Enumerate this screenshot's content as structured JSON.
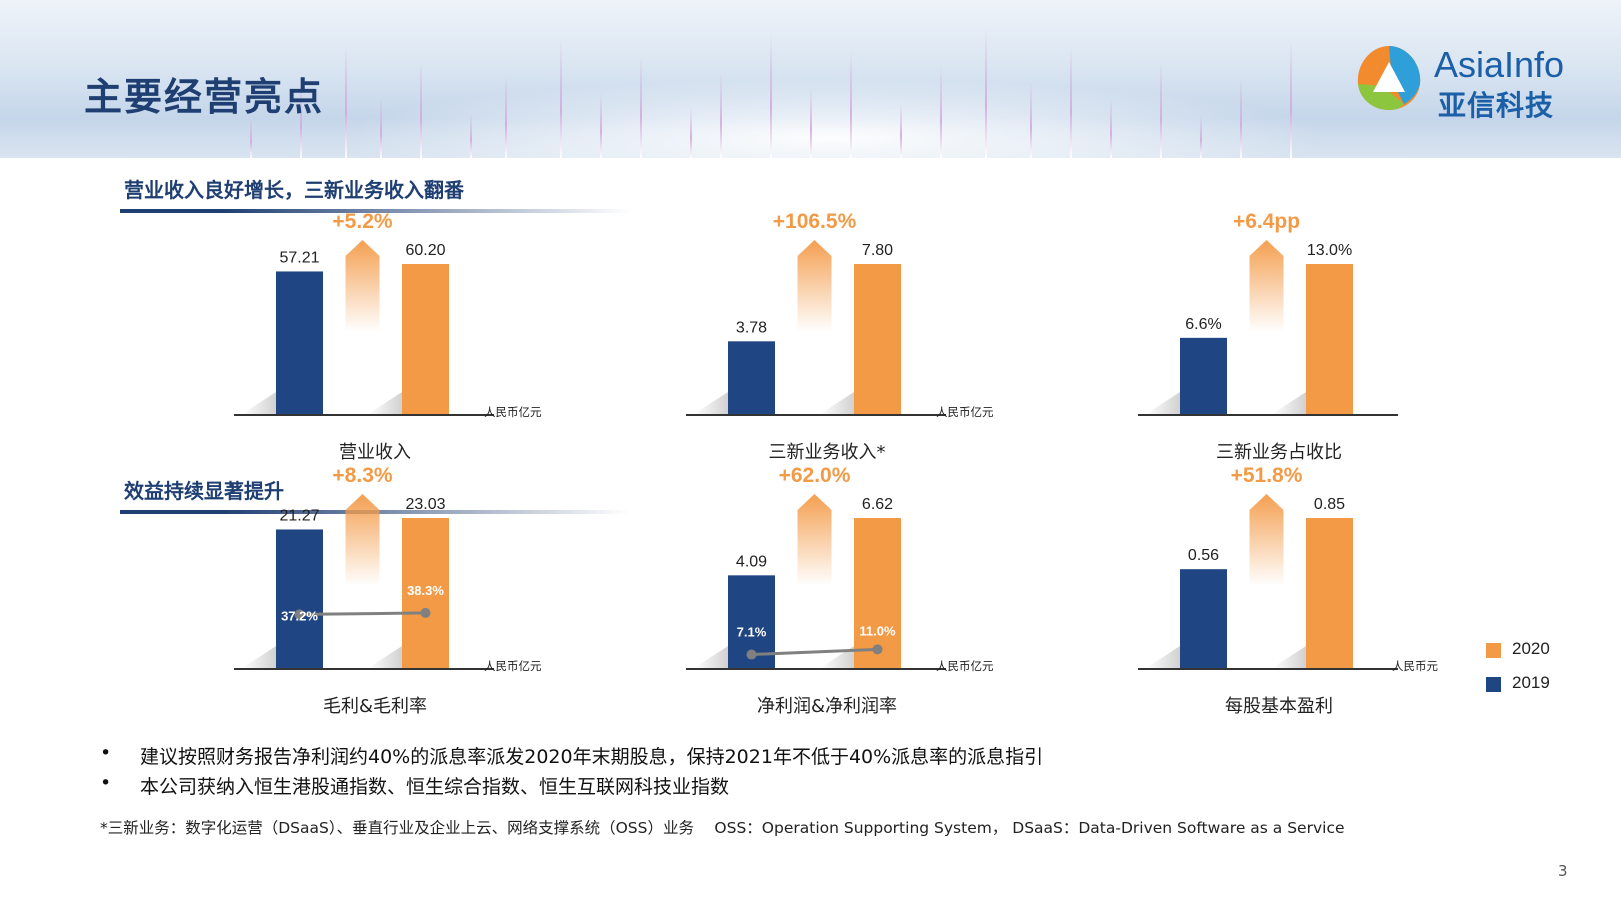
{
  "title": "主要经营亮点",
  "logo": {
    "en": "AsiaInfo",
    "cn": "亚信科技"
  },
  "section1": {
    "title": "营业收入良好增长，三新业务收入翻番"
  },
  "section2": {
    "title": "效益持续显著提升"
  },
  "colors": {
    "y2019": "#1f4683",
    "y2020": "#f39a47",
    "growth": "#f39a47",
    "line": "#808080"
  },
  "legend": [
    {
      "label": "2020",
      "color": "#f39a47"
    },
    {
      "label": "2019",
      "color": "#1f4683"
    }
  ],
  "chart_data": [
    {
      "type": "bar",
      "label": "营业收入",
      "unit": "人民币亿元",
      "categories": [
        "2019",
        "2020"
      ],
      "values": [
        57.21,
        60.2
      ],
      "value_labels": [
        "57.21",
        "60.20"
      ],
      "growth": "+5.2%"
    },
    {
      "type": "bar",
      "label": "三新业务收入*",
      "unit": "人民币亿元",
      "categories": [
        "2019",
        "2020"
      ],
      "values": [
        3.78,
        7.8
      ],
      "value_labels": [
        "3.78",
        "7.80"
      ],
      "growth": "+106.5%"
    },
    {
      "type": "bar",
      "label": "三新业务占收比",
      "unit": "",
      "categories": [
        "2019",
        "2020"
      ],
      "values": [
        6.6,
        13.0
      ],
      "value_labels": [
        "6.6%",
        "13.0%"
      ],
      "growth": "+6.4pp"
    },
    {
      "type": "bar",
      "label": "毛利&毛利率",
      "unit": "人民币亿元",
      "categories": [
        "2019",
        "2020"
      ],
      "values": [
        21.27,
        23.03
      ],
      "value_labels": [
        "21.27",
        "23.03"
      ],
      "growth": "+8.3%",
      "rate": {
        "values": [
          37.2,
          38.3
        ],
        "labels": [
          "37.2%",
          "38.3%"
        ]
      }
    },
    {
      "type": "bar",
      "label": "净利润&净利润率",
      "unit": "人民币亿元",
      "categories": [
        "2019",
        "2020"
      ],
      "values": [
        4.09,
        6.62
      ],
      "value_labels": [
        "4.09",
        "6.62"
      ],
      "growth": "+62.0%",
      "rate": {
        "values": [
          7.1,
          11.0
        ],
        "labels": [
          "7.1%",
          "11.0%"
        ]
      }
    },
    {
      "type": "bar",
      "label": "每股基本盈利",
      "unit": "人民币元",
      "categories": [
        "2019",
        "2020"
      ],
      "values": [
        0.56,
        0.85
      ],
      "value_labels": [
        "0.56",
        "0.85"
      ],
      "growth": "+51.8%"
    }
  ],
  "bullets": [
    "建议按照财务报告净利润约40%的派息率派发2020年末期股息，保持2021年不低于40%派息率的派息指引",
    "本公司获纳入恒生港股通指数、恒生综合指数、恒生互联网科技业指数"
  ],
  "bullet_marker": "•",
  "footnote": "*三新业务：数字化运营（DSaaS）、垂直行业及企业上云、网络支撑系统（OSS）业务　  OSS：Operation Supporting System，  DSaaS：Data-Driven Software as a Service",
  "page_number": "3"
}
